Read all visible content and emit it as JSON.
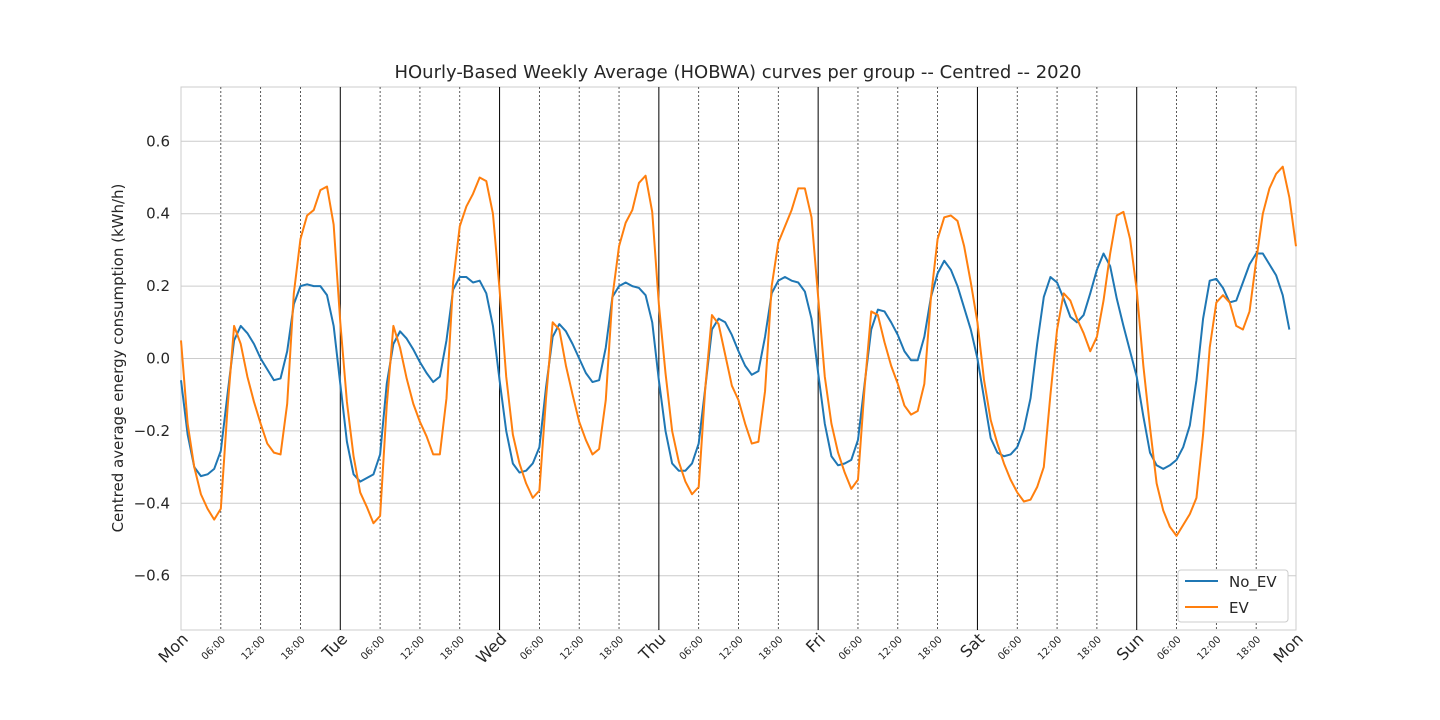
{
  "chart_data": {
    "type": "line",
    "title": "HOurly-Based Weekly Average (HOBWA) curves per group -- Centred -- 2020",
    "xlabel": "",
    "ylabel": "Centred average energy consumption (kWh/h)",
    "ylim": [
      -0.75,
      0.75
    ],
    "yticks": [
      -0.6,
      -0.4,
      -0.2,
      0.0,
      0.2,
      0.4,
      0.6
    ],
    "ytick_labels": [
      "−0.6",
      "−0.4",
      "−0.2",
      "0.0",
      "0.2",
      "0.4",
      "0.6"
    ],
    "x_unit": "hours from Monday 00:00",
    "xlim": [
      0,
      168
    ],
    "day_ticks": [
      {
        "hour": 0,
        "label": "Mon"
      },
      {
        "hour": 24,
        "label": "Tue"
      },
      {
        "hour": 48,
        "label": "Wed"
      },
      {
        "hour": 72,
        "label": "Thu"
      },
      {
        "hour": 96,
        "label": "Fri"
      },
      {
        "hour": 120,
        "label": "Sat"
      },
      {
        "hour": 144,
        "label": "Sun"
      },
      {
        "hour": 168,
        "label": "Mon"
      }
    ],
    "hour_tick_labels": [
      "06:00",
      "12:00",
      "18:00"
    ],
    "grid": true,
    "legend_position": "lower-right",
    "series": [
      {
        "name": "No_EV",
        "color": "#1f77b4",
        "values": [
          -0.06,
          -0.21,
          -0.3,
          -0.325,
          -0.32,
          -0.305,
          -0.255,
          -0.1,
          0.05,
          0.09,
          0.07,
          0.04,
          0.0,
          -0.03,
          -0.06,
          -0.055,
          0.02,
          0.15,
          0.2,
          0.205,
          0.2,
          0.2,
          0.175,
          0.09,
          -0.07,
          -0.23,
          -0.32,
          -0.34,
          -0.33,
          -0.32,
          -0.265,
          -0.07,
          0.04,
          0.075,
          0.055,
          0.025,
          -0.01,
          -0.04,
          -0.065,
          -0.05,
          0.05,
          0.19,
          0.225,
          0.225,
          0.21,
          0.215,
          0.18,
          0.09,
          -0.06,
          -0.2,
          -0.29,
          -0.315,
          -0.31,
          -0.29,
          -0.245,
          -0.08,
          0.06,
          0.095,
          0.075,
          0.04,
          0.0,
          -0.04,
          -0.065,
          -0.06,
          0.03,
          0.17,
          0.2,
          0.21,
          0.2,
          0.195,
          0.175,
          0.1,
          -0.06,
          -0.2,
          -0.29,
          -0.31,
          -0.31,
          -0.29,
          -0.235,
          -0.08,
          0.08,
          0.11,
          0.1,
          0.065,
          0.02,
          -0.02,
          -0.045,
          -0.035,
          0.06,
          0.18,
          0.215,
          0.225,
          0.215,
          0.21,
          0.185,
          0.11,
          -0.04,
          -0.18,
          -0.27,
          -0.295,
          -0.29,
          -0.28,
          -0.225,
          -0.07,
          0.08,
          0.135,
          0.13,
          0.1,
          0.065,
          0.02,
          -0.005,
          -0.005,
          0.06,
          0.17,
          0.235,
          0.27,
          0.245,
          0.2,
          0.14,
          0.08,
          0.0,
          -0.11,
          -0.22,
          -0.26,
          -0.27,
          -0.265,
          -0.245,
          -0.195,
          -0.11,
          0.04,
          0.17,
          0.225,
          0.21,
          0.165,
          0.115,
          0.1,
          0.12,
          0.18,
          0.245,
          0.29,
          0.255,
          0.165,
          0.09,
          0.02,
          -0.05,
          -0.16,
          -0.26,
          -0.295,
          -0.305,
          -0.295,
          -0.28,
          -0.245,
          -0.185,
          -0.06,
          0.11,
          0.215,
          0.22,
          0.195,
          0.155,
          0.16,
          0.21,
          0.26,
          0.29,
          0.29,
          0.26,
          0.23,
          0.175,
          0.08
        ]
      },
      {
        "name": "EV",
        "color": "#ff7f0e",
        "values": [
          0.05,
          -0.18,
          -0.3,
          -0.375,
          -0.415,
          -0.445,
          -0.415,
          -0.14,
          0.09,
          0.04,
          -0.05,
          -0.12,
          -0.18,
          -0.235,
          -0.26,
          -0.265,
          -0.125,
          0.18,
          0.33,
          0.395,
          0.41,
          0.465,
          0.475,
          0.37,
          0.1,
          -0.12,
          -0.27,
          -0.37,
          -0.41,
          -0.455,
          -0.435,
          -0.13,
          0.09,
          0.03,
          -0.055,
          -0.125,
          -0.175,
          -0.215,
          -0.265,
          -0.265,
          -0.11,
          0.21,
          0.365,
          0.42,
          0.455,
          0.5,
          0.49,
          0.4,
          0.19,
          -0.05,
          -0.21,
          -0.29,
          -0.345,
          -0.385,
          -0.365,
          -0.11,
          0.1,
          0.08,
          -0.02,
          -0.1,
          -0.175,
          -0.225,
          -0.265,
          -0.25,
          -0.115,
          0.17,
          0.31,
          0.375,
          0.41,
          0.485,
          0.505,
          0.405,
          0.15,
          -0.04,
          -0.2,
          -0.285,
          -0.34,
          -0.375,
          -0.355,
          -0.08,
          0.12,
          0.095,
          0.01,
          -0.075,
          -0.115,
          -0.18,
          -0.235,
          -0.23,
          -0.09,
          0.2,
          0.32,
          0.365,
          0.41,
          0.47,
          0.47,
          0.39,
          0.17,
          -0.05,
          -0.18,
          -0.26,
          -0.315,
          -0.36,
          -0.335,
          -0.08,
          0.13,
          0.12,
          0.045,
          -0.02,
          -0.07,
          -0.13,
          -0.155,
          -0.145,
          -0.07,
          0.17,
          0.33,
          0.39,
          0.395,
          0.38,
          0.31,
          0.21,
          0.1,
          -0.06,
          -0.17,
          -0.235,
          -0.29,
          -0.335,
          -0.37,
          -0.395,
          -0.39,
          -0.355,
          -0.3,
          -0.1,
          0.08,
          0.18,
          0.16,
          0.11,
          0.07,
          0.02,
          0.06,
          0.16,
          0.29,
          0.395,
          0.405,
          0.33,
          0.19,
          -0.02,
          -0.19,
          -0.345,
          -0.42,
          -0.465,
          -0.49,
          -0.46,
          -0.43,
          -0.385,
          -0.21,
          0.03,
          0.155,
          0.175,
          0.155,
          0.09,
          0.08,
          0.13,
          0.27,
          0.4,
          0.47,
          0.51,
          0.53,
          0.445,
          0.31
        ]
      }
    ]
  }
}
